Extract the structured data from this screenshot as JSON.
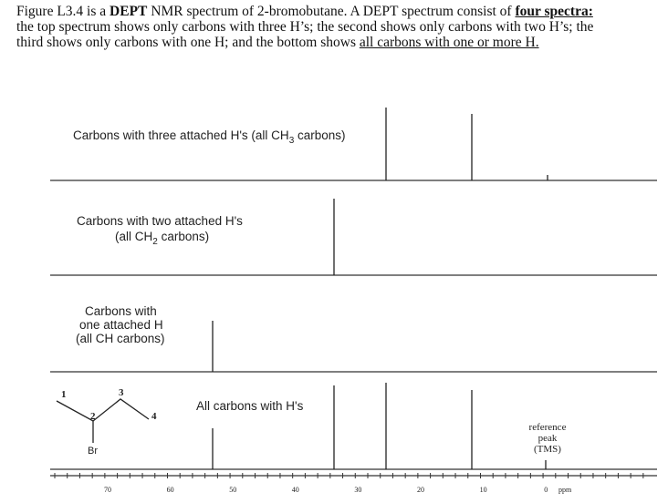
{
  "caption": {
    "line1": [
      "Figure L3.4 is a ",
      "DEPT",
      " NMR spectrum of 2-bromobutane. A DEPT spectrum consist of ",
      "four spectra:"
    ],
    "line2": "the top spectrum shows only carbons with three H’s; the second shows only carbons with two H’s; the",
    "line3": [
      "third shows only carbons with one H; and the bottom shows ",
      "all carbons with one or more H."
    ]
  },
  "panels": [
    {
      "label": [
        "Carbons with three attached H's (all CH",
        "3",
        " carbons)"
      ]
    },
    {
      "label_line1": "Carbons with two attached H's",
      "label_line2": [
        "(all CH",
        "2",
        " carbons)"
      ]
    },
    {
      "label_lines": [
        "Carbons with",
        "one attached H",
        "(all CH carbons)"
      ]
    },
    {
      "label": "All carbons with H's"
    }
  ],
  "molecule": {
    "atoms": [
      "1",
      "2",
      "3",
      "4"
    ],
    "substituent": "Br"
  },
  "reference": [
    "reference",
    "peak",
    "(TMS)"
  ],
  "axis": {
    "ticks": [
      "70",
      "60",
      "50",
      "40",
      "30",
      "20",
      "10",
      "0"
    ],
    "unit": "ppm"
  }
}
